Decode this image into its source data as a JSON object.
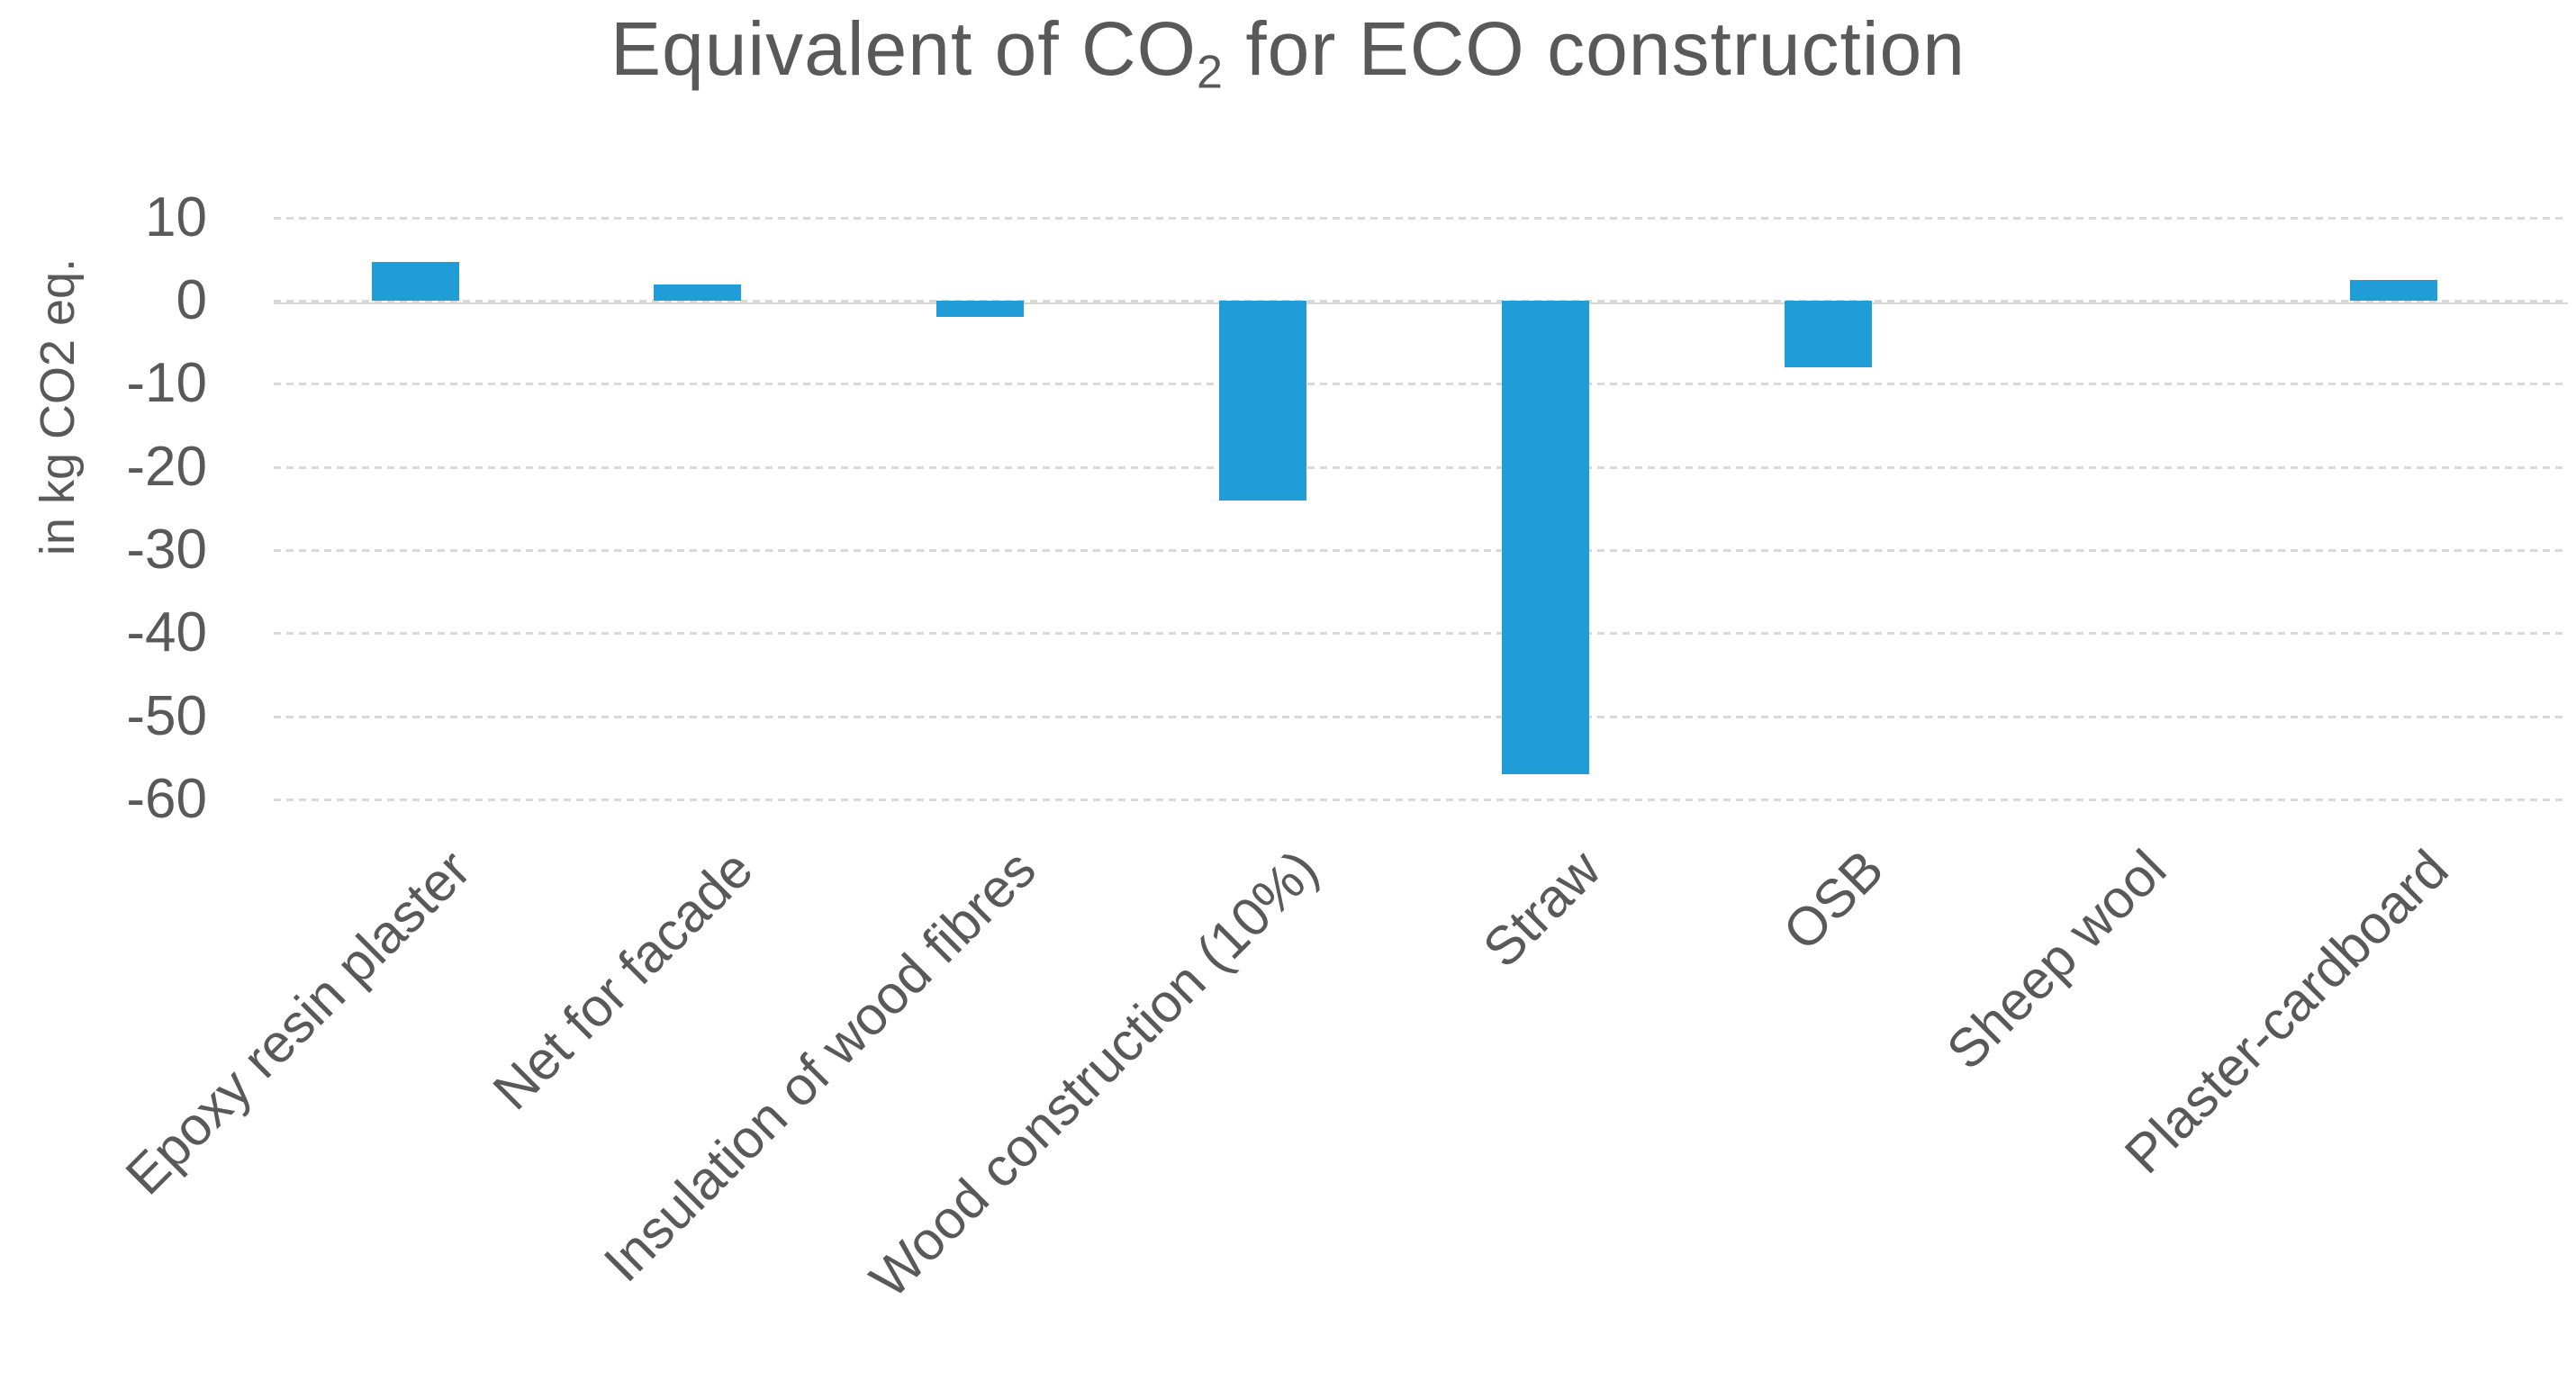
{
  "title": {
    "pre": "Equivalent of CO",
    "sub": "2",
    "post": " for ECO construction"
  },
  "chart_data": {
    "type": "bar",
    "title": "Equivalent of CO2 for ECO construction",
    "categories": [
      "Epoxy resin plaster",
      "Net for facade",
      "Insulation of wood fibres",
      "Wood construction (10%)",
      "Straw",
      "OSB",
      "Sheep wool",
      "Plaster-cardboard"
    ],
    "values": [
      4.7,
      2,
      -2,
      -24,
      -57,
      -8,
      0,
      2.5
    ],
    "xlabel": "",
    "ylabel": "in kg CO2 eq.",
    "ylim": [
      -60,
      10
    ],
    "yticks": [
      10,
      0,
      -10,
      -20,
      -30,
      -40,
      -50,
      -60
    ],
    "grid": "horizontal-dashed",
    "legend": "none",
    "bar_color": "#209dd7",
    "grid_color": "#d9d9d9",
    "axis_line_color": "#d6d6d6",
    "text_color": "#595959",
    "background_color": "#ffffff"
  }
}
